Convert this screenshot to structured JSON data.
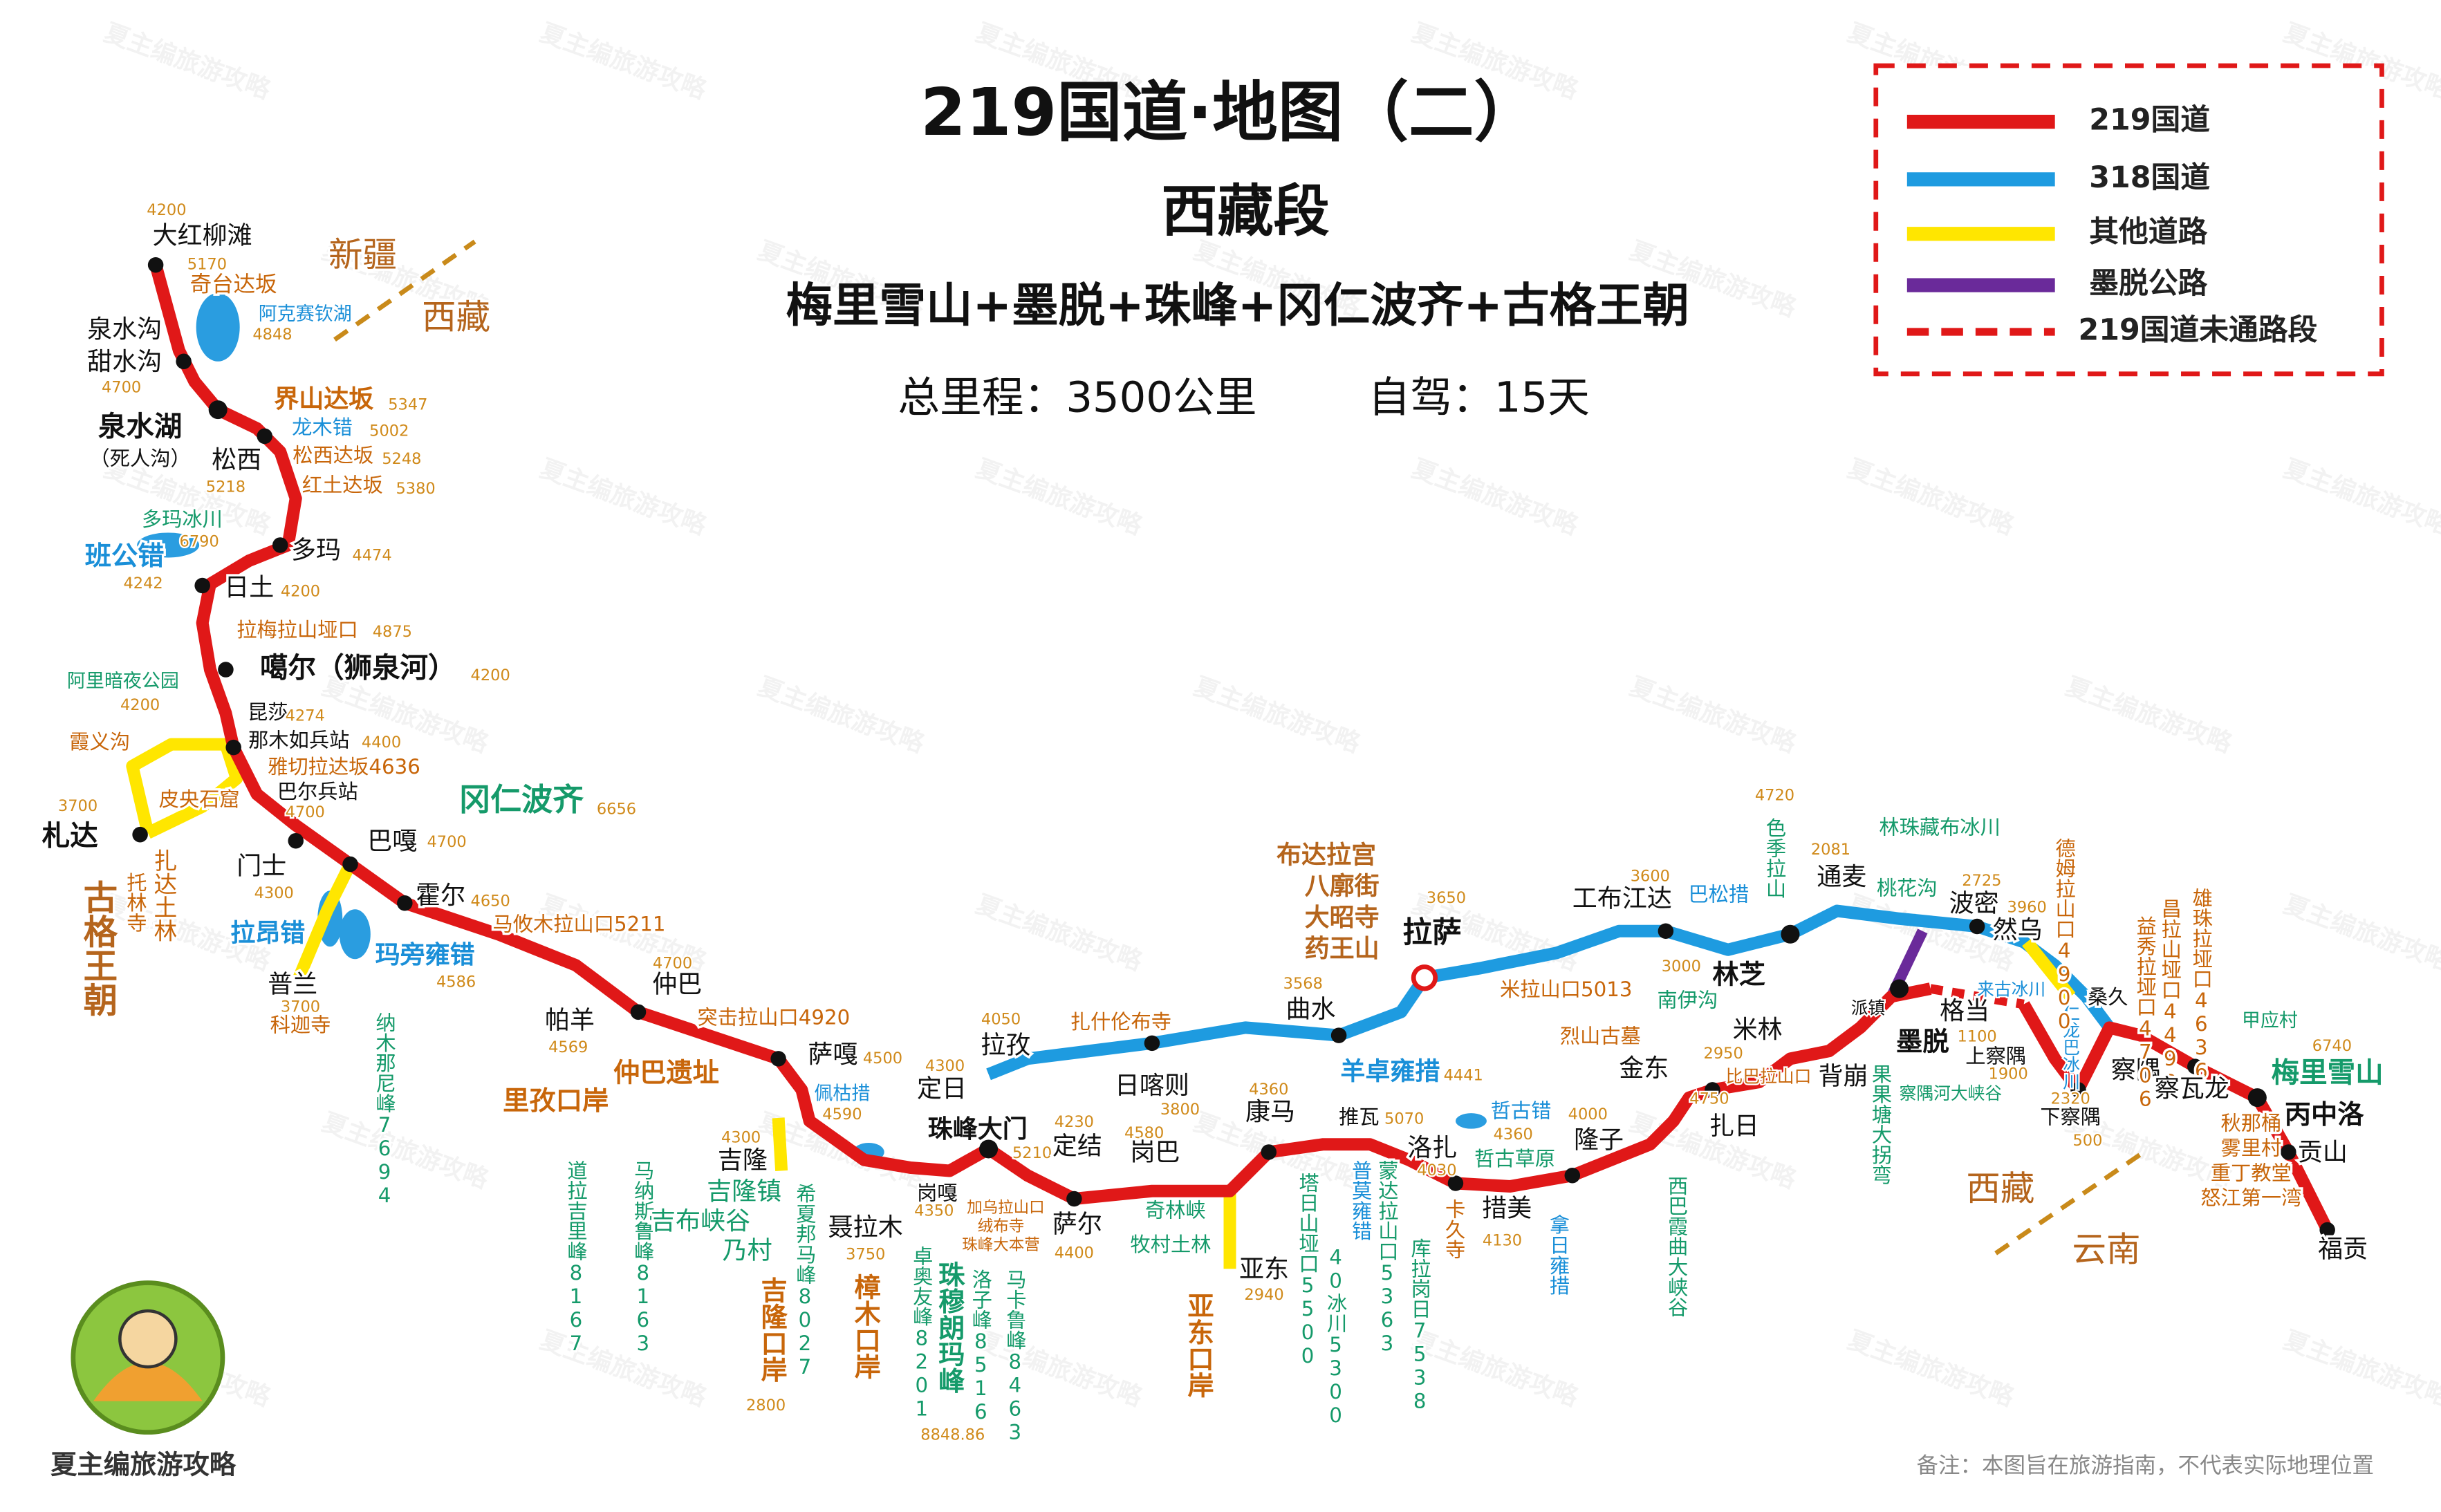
{
  "header": {
    "title": "219国道·地图（二）",
    "region": "西藏段",
    "highlights": "梅里雪山+墨脱+珠峰+冈仁波齐+古格王朝",
    "total_label": "总里程：3500公里",
    "days_label": "自驾：15天"
  },
  "legend": [
    "219国道",
    "318国道",
    "其他道路",
    "墨脱公路",
    "219国道未通路段"
  ],
  "labels": [
    "4200",
    "大红柳滩",
    "5170",
    "奇台达坂",
    "新疆",
    "西藏",
    "阿克赛钦湖",
    "4848",
    "泉水沟",
    "甜水沟",
    "4700",
    "泉水湖",
    "（死人沟）",
    "界山达坂",
    "5347",
    "龙木错",
    "5002",
    "松西",
    "松西达坂",
    "5248",
    "5218",
    "红土达坂",
    "5380",
    "多玛冰川",
    "6790",
    "多玛",
    "4474",
    "班公错",
    "4242",
    "日土",
    "4200",
    "拉梅拉山垭口",
    "4875",
    "噶尔（狮泉河）",
    "4200",
    "阿里暗夜公园",
    "4200",
    "昆莎",
    "4274",
    "霞义沟",
    "那木如兵站",
    "4400",
    "雅切拉达坂4636",
    "3700",
    "皮央石窟",
    "巴尔兵站",
    "4700",
    "冈仁波齐",
    "6656",
    "札达",
    "巴嘎",
    "4700",
    "古格王朝",
    "托林寺",
    "扎达土林",
    "门士",
    "4300",
    "霍尔",
    "4650",
    "马攸木拉山口5211",
    "拉昂错",
    "玛旁雍错",
    "4586",
    "普兰",
    "3700",
    "科迦寺",
    "4700",
    "仲巴",
    "纳木那尼峰7694",
    "帕羊",
    "4569",
    "突击拉山口4920",
    "萨嘎",
    "4500",
    "仲巴遗址",
    "佩枯措",
    "4590",
    "里孜口岸",
    "道拉吉里峰8167",
    "马纳斯鲁峰8163",
    "4300",
    "吉隆",
    "吉隆镇",
    "吉布峡谷",
    "乃村",
    "希夏邦马峰8027",
    "吉隆口岸",
    "2800",
    "聂拉木",
    "3750",
    "樟木口岸",
    "4300",
    "定日",
    "岗嘎",
    "4350",
    "卓奥友峰8201",
    "珠峰大门",
    "珠穆朗玛峰",
    "8848.86",
    "洛子峰8516",
    "5210",
    "加乌拉山口",
    "绒布寺",
    "珠峰大本营",
    "马卡鲁峰8463",
    "4050",
    "拉孜",
    "扎什伦布寺",
    "日喀则",
    "3800",
    "4230",
    "定结",
    "萨尔",
    "4400",
    "4580",
    "岗巴",
    "奇林峡",
    "牧村土林",
    "4360",
    "康马",
    "亚东",
    "2940",
    "亚东口岸",
    "塔日山垭口5500",
    "40冰川5300",
    "推瓦",
    "5070",
    "普莫雍错",
    "蒙达拉山口5363",
    "库拉岗日7538",
    "洛扎",
    "4030",
    "卡久寺",
    "哲古错",
    "4360",
    "哲古草原",
    "措美",
    "4130",
    "拿日雍措",
    "4000",
    "隆子",
    "西巴霞曲大峡谷",
    "布达拉宫",
    "八廓街",
    "大昭寺",
    "药王山",
    "3650",
    "拉萨",
    "3568",
    "曲水",
    "羊卓雍措",
    "4441",
    "米拉山口5013",
    "烈山古墓",
    "金东",
    "扎日",
    "3600",
    "工布江达",
    "巴松措",
    "3000",
    "林芝",
    "南伊沟",
    "2950",
    "米林",
    "比巴拉山口",
    "4750",
    "4720",
    "色季拉山",
    "2081",
    "通麦",
    "林珠藏布冰川",
    "桃花沟",
    "2725",
    "波密",
    "背崩",
    "墨脱",
    "派镇",
    "格当",
    "1100",
    "上察隅",
    "1900",
    "下察隅",
    "果果塘大拐弯",
    "察隅河大峡谷",
    "2320",
    "察隅",
    "500",
    "3960",
    "然乌",
    "来古冰川",
    "仁龙巴冰川",
    "德姆拉山口4900",
    "桑久",
    "益秀拉垭口4706",
    "昌拉山垭口4498",
    "雄珠拉垭口4636",
    "察瓦龙",
    "甲应村",
    "6740",
    "梅里雪山",
    "丙中洛",
    "秋那桶",
    "雾里村",
    "重丁教堂",
    "怒江第一湾",
    "贡山",
    "福贡",
    "西藏",
    "云南"
  ],
  "footer": {
    "brand": "夏主编旅游攻略",
    "note": "备注：本图旨在旅游指南，不代表实际地理位置"
  },
  "watermark": "夏主编旅游攻略"
}
